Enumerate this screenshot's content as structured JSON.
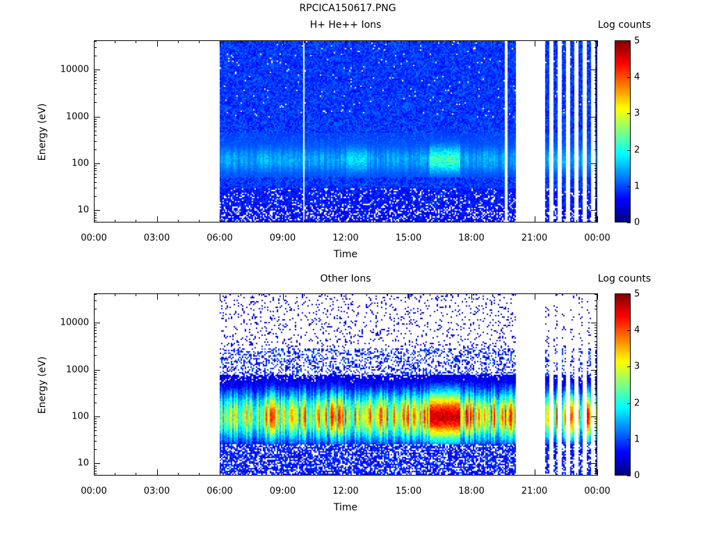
{
  "figure_title": "RPCICA150617.PNG",
  "colors": {
    "colormap": [
      "#00007f",
      "#0000ff",
      "#007fff",
      "#00ffff",
      "#7fff7f",
      "#ffff00",
      "#ff7f00",
      "#ff0000",
      "#7f0000"
    ]
  },
  "chart_data": [
    {
      "type": "heatmap",
      "title": "H+ He++ Ions",
      "xlabel": "Time",
      "ylabel": "Energy (eV)",
      "colorbar_title": "Log counts",
      "colorbar_range": [
        0,
        5
      ],
      "colorbar_ticks": [
        "0",
        "1",
        "2",
        "3",
        "4",
        "5"
      ],
      "x_ticks": [
        "00:00",
        "03:00",
        "06:00",
        "09:00",
        "12:00",
        "15:00",
        "18:00",
        "21:00",
        "00:00"
      ],
      "xlim_hours": [
        0,
        24
      ],
      "y_scale": "log",
      "y_ticks": [
        "10",
        "100",
        "1000",
        "10000"
      ],
      "ylim": [
        5.5,
        42000
      ],
      "data_coverage_hours": [
        [
          6.0,
          20.1
        ],
        [
          21.5,
          24.0
        ]
      ],
      "data_gaps_hours": [
        [
          9.95,
          10.05
        ],
        [
          19.6,
          19.7
        ]
      ],
      "background_level_log_counts": 0.9,
      "enhancement_band_eV": [
        50,
        300
      ],
      "enhancement_peak_log_counts": 2.4,
      "enhancement_peak_time_hours": [
        16.0,
        17.5
      ]
    },
    {
      "type": "heatmap",
      "title": "Other Ions",
      "xlabel": "Time",
      "ylabel": "Energy (eV)",
      "colorbar_title": "Log counts",
      "colorbar_range": [
        0,
        5
      ],
      "colorbar_ticks": [
        "0",
        "1",
        "2",
        "3",
        "4",
        "5"
      ],
      "x_ticks": [
        "00:00",
        "03:00",
        "06:00",
        "09:00",
        "12:00",
        "15:00",
        "18:00",
        "21:00",
        "00:00"
      ],
      "xlim_hours": [
        0,
        24
      ],
      "y_scale": "log",
      "y_ticks": [
        "10",
        "100",
        "1000",
        "10000"
      ],
      "ylim": [
        5.5,
        42000
      ],
      "data_coverage_hours": [
        [
          6.0,
          20.1
        ],
        [
          21.5,
          24.0
        ]
      ],
      "main_band_eV": [
        25,
        800
      ],
      "main_band_center_eV": 100,
      "main_band_peak_log_counts": 4.6,
      "main_band_peak_time_hours": [
        16.0,
        17.5
      ]
    }
  ]
}
